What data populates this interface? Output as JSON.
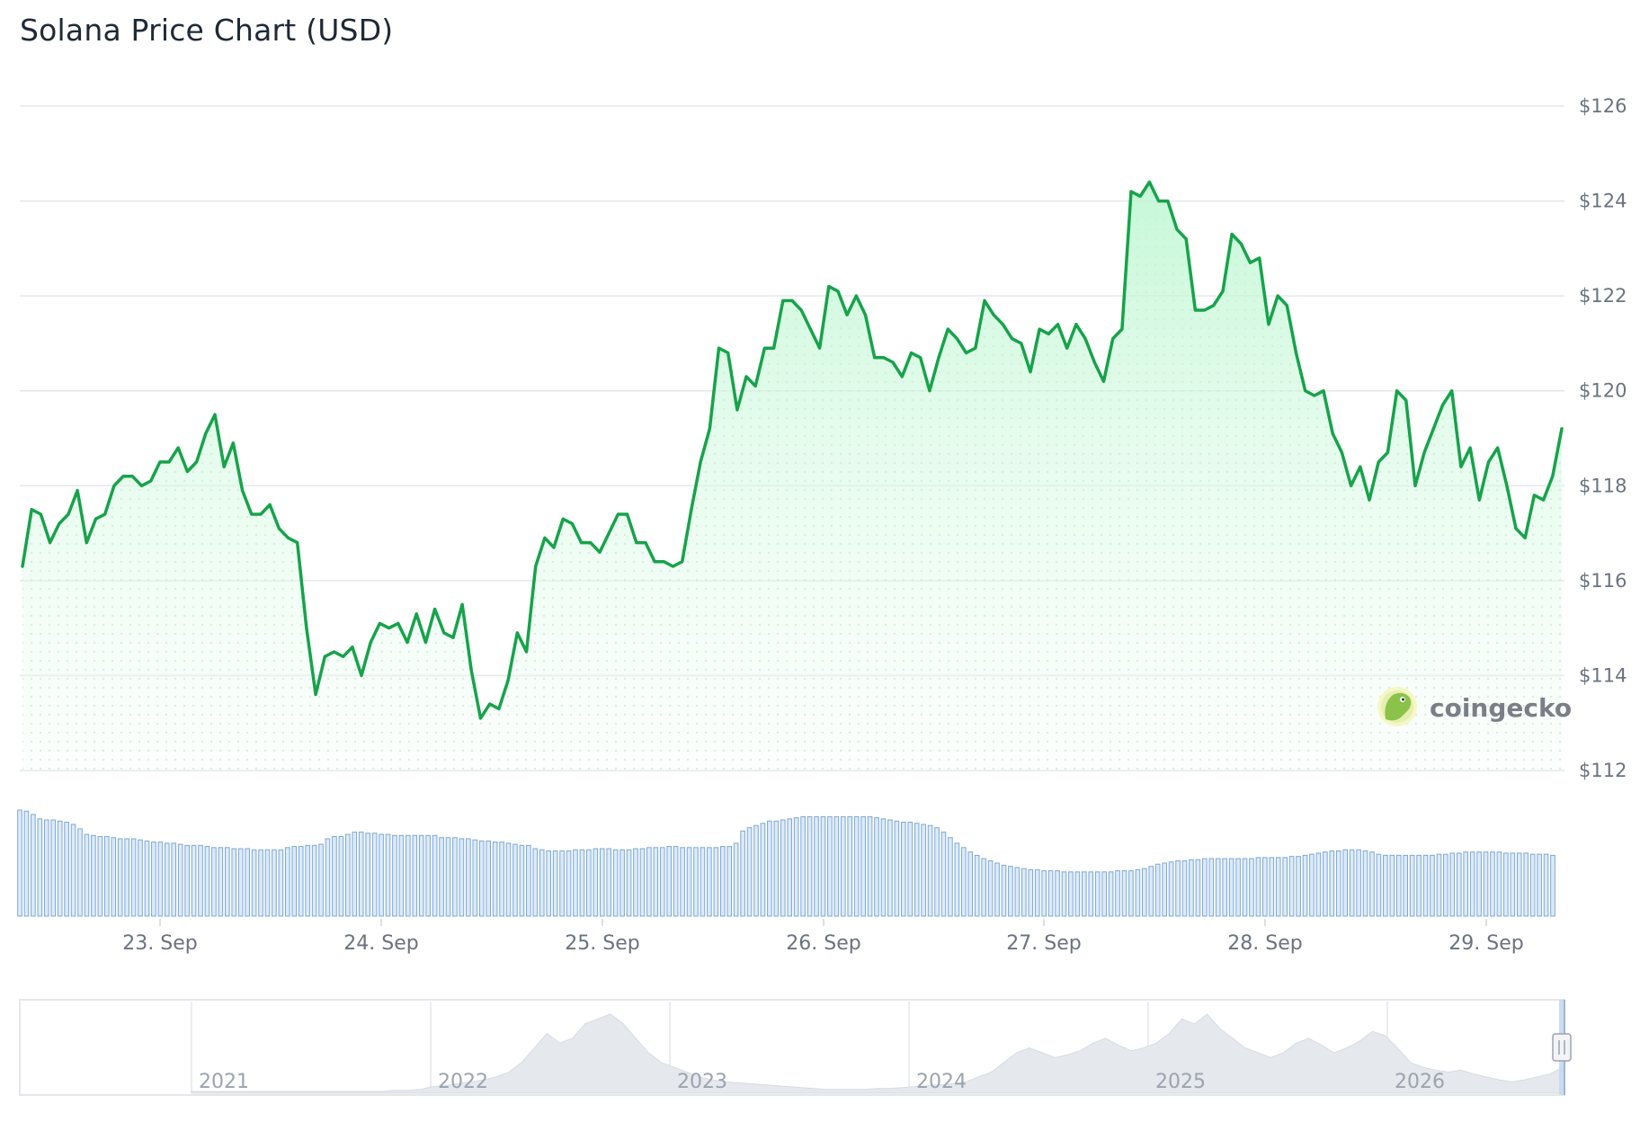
{
  "page": {
    "title": "Solana Price Chart (USD)",
    "watermark": "coingecko",
    "watermark_icon": "gecko-logo-icon"
  },
  "colors": {
    "line": "#16a34a",
    "area_top": "#bbf7d0",
    "volume_fill": "#dbeafe",
    "volume_stroke": "#7fa8cf",
    "grid": "#e5e7eb",
    "navigator_fill": "#e5e9ee"
  },
  "chart_data": {
    "type": "line",
    "y_axis": {
      "ticks": [
        112,
        114,
        116,
        118,
        120,
        122,
        124,
        126
      ],
      "tick_labels": [
        "$112",
        "$114",
        "$116",
        "$118",
        "$120",
        "$122",
        "$124",
        "$126"
      ],
      "ylim": [
        112,
        126
      ],
      "position": "right"
    },
    "x_axis": {
      "tick_labels": [
        "23. Sep",
        "24. Sep",
        "25. Sep",
        "26. Sep",
        "27. Sep",
        "28. Sep",
        "29. Sep"
      ],
      "range_days": [
        22.38,
        29.35
      ]
    },
    "grid": true,
    "legend": "none",
    "series": [
      {
        "values": [
          116.3,
          117.5,
          117.4,
          116.8,
          117.2,
          117.4,
          117.9,
          116.8,
          117.3,
          117.4,
          118.0,
          118.2,
          118.2,
          118.0,
          118.1,
          118.5,
          118.5,
          118.8,
          118.3,
          118.5,
          119.1,
          119.5,
          118.4,
          118.9,
          117.9,
          117.4,
          117.4,
          117.6,
          117.1,
          116.9,
          116.8,
          115.0,
          113.6,
          114.4,
          114.5,
          114.4,
          114.6,
          114.0,
          114.7,
          115.1,
          115.0,
          115.1,
          114.7,
          115.3,
          114.7,
          115.4,
          114.9,
          114.8,
          115.5,
          114.1,
          113.1,
          113.4,
          113.3,
          113.9,
          114.9,
          114.5,
          116.3,
          116.9,
          116.7,
          117.3,
          117.2,
          116.8,
          116.8,
          116.6,
          117.0,
          117.4,
          117.4,
          116.8,
          116.8,
          116.4,
          116.4,
          116.3,
          116.4,
          117.5,
          118.5,
          119.2,
          120.9,
          120.8,
          119.6,
          120.3,
          120.1,
          120.9,
          120.9,
          121.9,
          121.9,
          121.7,
          121.3,
          120.9,
          122.2,
          122.1,
          121.6,
          122.0,
          121.6,
          120.7,
          120.7,
          120.6,
          120.3,
          120.8,
          120.7,
          120.0,
          120.7,
          121.3,
          121.1,
          120.8,
          120.9,
          121.9,
          121.6,
          121.4,
          121.1,
          121.0,
          120.4,
          121.3,
          121.2,
          121.4,
          120.9,
          121.4,
          121.1,
          120.6,
          120.2,
          121.1,
          121.3,
          124.2,
          124.1,
          124.4,
          124.0,
          124.0,
          123.4,
          123.2,
          121.7,
          121.7,
          121.8,
          122.1,
          123.3,
          123.1,
          122.7,
          122.8,
          121.4,
          122.0,
          121.8,
          120.8,
          120.0,
          119.9,
          120.0,
          119.1,
          118.7,
          118.0,
          118.4,
          117.7,
          118.5,
          118.7,
          120.0,
          119.8,
          118.0,
          118.7,
          119.2,
          119.7,
          120.0,
          118.4,
          118.8,
          117.7,
          118.5,
          118.8,
          118.0,
          117.1,
          116.9,
          117.8,
          117.7,
          118.2,
          119.2
        ]
      }
    ],
    "volume": {
      "values": [
        96,
        95,
        92,
        88,
        87,
        87,
        86,
        85,
        83,
        79,
        74,
        73,
        72,
        72,
        71,
        70,
        70,
        70,
        69,
        68,
        67,
        67,
        66,
        66,
        65,
        64,
        64,
        64,
        63,
        62,
        62,
        62,
        61,
        61,
        61,
        60,
        60,
        60,
        60,
        60,
        62,
        63,
        63,
        64,
        64,
        65,
        70,
        72,
        72,
        74,
        76,
        76,
        75,
        75,
        74,
        74,
        73,
        73,
        73,
        73,
        73,
        73,
        73,
        71,
        71,
        71,
        70,
        70,
        69,
        68,
        68,
        67,
        67,
        66,
        65,
        64,
        64,
        61,
        60,
        59,
        59,
        59,
        59,
        60,
        60,
        60,
        61,
        61,
        61,
        60,
        60,
        60,
        61,
        61,
        62,
        62,
        62,
        63,
        63,
        62,
        62,
        62,
        62,
        62,
        62,
        63,
        63,
        66,
        77,
        80,
        82,
        84,
        86,
        86,
        87,
        88,
        89,
        90,
        90,
        90,
        90,
        90,
        90,
        90,
        90,
        90,
        90,
        90,
        89,
        88,
        87,
        86,
        85,
        85,
        84,
        83,
        82,
        80,
        76,
        71,
        66,
        62,
        58,
        55,
        52,
        50,
        48,
        46,
        45,
        44,
        43,
        42,
        42,
        41,
        41,
        41,
        40,
        40,
        40,
        40,
        40,
        40,
        40,
        40,
        41,
        41,
        41,
        42,
        43,
        45,
        47,
        48,
        49,
        50,
        50,
        51,
        51,
        52,
        52,
        52,
        52,
        52,
        52,
        52,
        52,
        53,
        53,
        53,
        53,
        53,
        54,
        54,
        55,
        56,
        57,
        58,
        59,
        59,
        60,
        60,
        60,
        59,
        58,
        56,
        55,
        55,
        55,
        55,
        55,
        55,
        55,
        55,
        56,
        56,
        57,
        57,
        58,
        58,
        58,
        58,
        58,
        58,
        57,
        57,
        57,
        57,
        56,
        56,
        56,
        55
      ]
    },
    "navigator": {
      "labels": [
        "2021",
        "2022",
        "2023",
        "2024",
        "2025",
        "2026"
      ],
      "history": [
        0,
        0,
        0,
        0,
        0,
        0,
        0,
        0,
        0,
        0,
        0,
        0,
        0,
        0,
        0,
        0,
        1,
        1,
        2,
        5,
        6,
        8,
        10,
        12,
        15,
        20,
        30,
        45,
        60,
        50,
        55,
        70,
        75,
        80,
        70,
        55,
        40,
        30,
        25,
        20,
        15,
        12,
        10,
        9,
        8,
        7,
        6,
        5,
        4,
        3,
        2,
        2,
        2,
        2,
        3,
        3,
        4,
        5,
        6,
        7,
        8,
        10,
        15,
        20,
        30,
        40,
        45,
        40,
        35,
        38,
        42,
        50,
        55,
        48,
        42,
        45,
        50,
        60,
        75,
        70,
        80,
        65,
        55,
        45,
        40,
        35,
        40,
        50,
        55,
        48,
        40,
        45,
        52,
        62,
        58,
        45,
        30,
        25,
        22,
        20,
        22,
        18,
        15,
        12,
        10,
        12,
        15,
        18,
        25
      ]
    }
  }
}
